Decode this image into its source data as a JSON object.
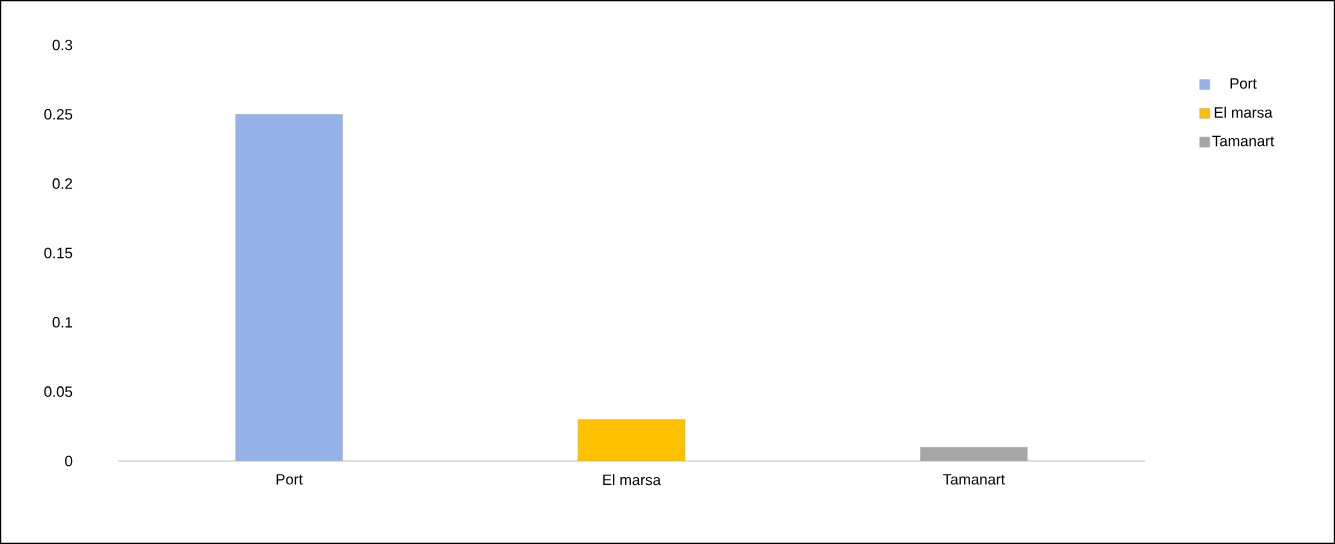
{
  "chart_data": {
    "type": "bar",
    "categories": [
      "Port",
      "El marsa",
      "Tamanart"
    ],
    "series": [
      {
        "name": "Port",
        "color": "#95b3e8",
        "values": [
          0.25,
          null,
          null
        ]
      },
      {
        "name": "El marsa",
        "color": "#ffc000",
        "values": [
          null,
          0.03,
          null
        ]
      },
      {
        "name": "Tamanart",
        "color": "#a6a6a6",
        "values": [
          null,
          null,
          0.01
        ]
      }
    ],
    "ylim": [
      0,
      0.3
    ],
    "yticks": [
      0,
      0.05,
      0.1,
      0.15,
      0.2,
      0.25,
      0.3
    ],
    "grid": false,
    "legend": "top right"
  }
}
